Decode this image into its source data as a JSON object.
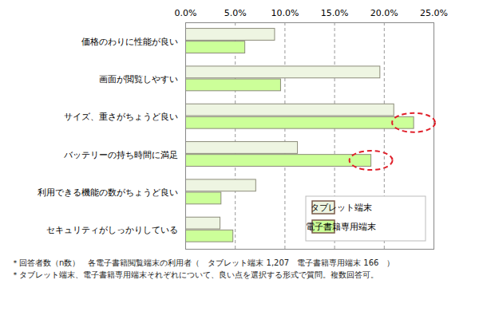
{
  "chart_data": {
    "type": "bar",
    "orientation": "horizontal",
    "categories": [
      "価格のわりに性能が良い",
      "画面が閲覧しやすい",
      "サイズ、重さがちょうど良い",
      "バッテリーの持ち時間に満足",
      "利用できる機能の数がちょうど良い",
      "セキュリティがしっかりしている"
    ],
    "series": [
      {
        "name": "タブレット端末",
        "color": "#eef5e2",
        "values": [
          9.0,
          19.6,
          21.0,
          11.3,
          7.1,
          3.5
        ]
      },
      {
        "name": "電子書籍専用端末",
        "color": "#ccff99",
        "values": [
          6.0,
          9.6,
          23.0,
          18.7,
          3.6,
          4.8
        ]
      }
    ],
    "xlim": [
      0,
      25
    ],
    "xticks": [
      {
        "value": 0,
        "label": "0.0%"
      },
      {
        "value": 5,
        "label": "5.0%"
      },
      {
        "value": 10,
        "label": "10.0%"
      },
      {
        "value": 15,
        "label": "15.0%"
      },
      {
        "value": 20,
        "label": "20.0%"
      },
      {
        "value": 25,
        "label": "25.0%"
      }
    ],
    "grid": true,
    "legend": "bottom-right",
    "annotations": [
      "＊回答者数（n数）　各電子書籍閲覧端末の利用者（　タブレット端末 1,207　電子書籍専用端末 166　）",
      "＊タブレット端末、電子書籍専用端末それぞれについて、良い点を選択する形式で質問。複数回答可。"
    ]
  }
}
